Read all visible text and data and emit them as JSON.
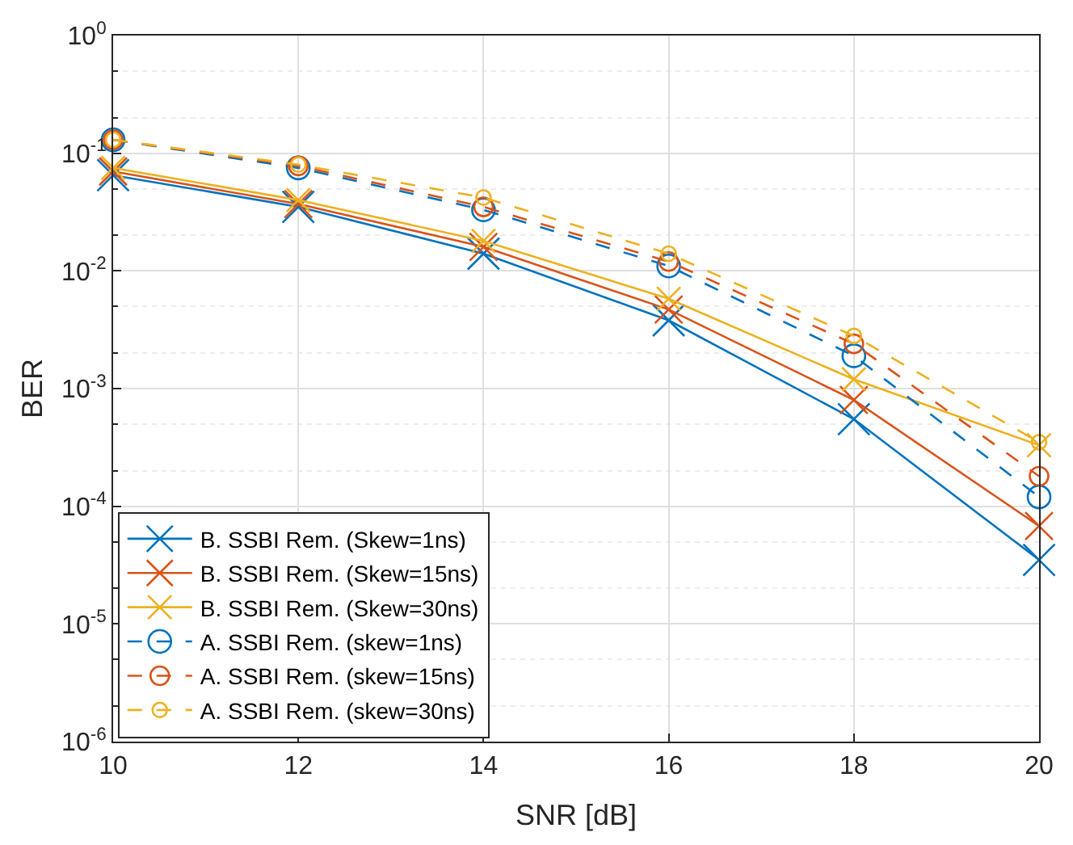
{
  "chart_data": {
    "type": "line",
    "xlabel": "SNR [dB]",
    "ylabel": "BER",
    "x": [
      10,
      12,
      14,
      16,
      18,
      20
    ],
    "series": [
      {
        "name": "B. SSBI Rem. (Skew=1ns)",
        "color": "#0072bd",
        "marker": "cross",
        "line_style": "solid",
        "values": [
          0.065,
          0.035,
          0.014,
          0.0038,
          0.00055,
          3.5e-05
        ]
      },
      {
        "name": "B. SSBI Rem. (Skew=15ns)",
        "color": "#d95319",
        "marker": "cross",
        "line_style": "solid",
        "values": [
          0.07,
          0.037,
          0.016,
          0.0047,
          0.0008,
          6.8e-05
        ]
      },
      {
        "name": "B. SSBI Rem. (Skew=30ns)",
        "color": "#edb120",
        "marker": "cross",
        "line_style": "solid",
        "values": [
          0.075,
          0.04,
          0.018,
          0.0058,
          0.0012,
          0.00033
        ]
      },
      {
        "name": "A. SSBI Rem. (skew=1ns)",
        "color": "#0072bd",
        "marker": "circle",
        "line_style": "dashed",
        "values": [
          0.13,
          0.075,
          0.033,
          0.011,
          0.0019,
          0.00012
        ]
      },
      {
        "name": "A. SSBI Rem. (skew=15ns)",
        "color": "#d95319",
        "marker": "circle",
        "line_style": "dashed",
        "values": [
          0.13,
          0.078,
          0.035,
          0.012,
          0.0024,
          0.00018
        ]
      },
      {
        "name": "A. SSBI Rem. (skew=30ns)",
        "color": "#edb120",
        "marker": "circle",
        "line_style": "dashed",
        "values": [
          0.13,
          0.08,
          0.042,
          0.014,
          0.0028,
          0.00035
        ]
      }
    ],
    "xlim": [
      10,
      20
    ],
    "xticks": [
      10,
      12,
      14,
      16,
      18,
      20
    ],
    "log": "y",
    "ylim": [
      1e-06,
      1
    ],
    "yticks": [
      {
        "value": 1e-06,
        "label": "10$^{-6}$"
      },
      {
        "value": 1e-05,
        "label": "10$^{-5}$"
      },
      {
        "value": 0.0001,
        "label": "10$^{-4}$"
      },
      {
        "value": 0.001,
        "label": "10$^{-3}$"
      },
      {
        "value": 0.01,
        "label": "10$^{-2}$"
      },
      {
        "value": 0.1,
        "label": "10$^{-1}$"
      },
      {
        "value": 1,
        "label": "10$^{0}$"
      }
    ],
    "grid": true,
    "legend": "bottom left"
  }
}
